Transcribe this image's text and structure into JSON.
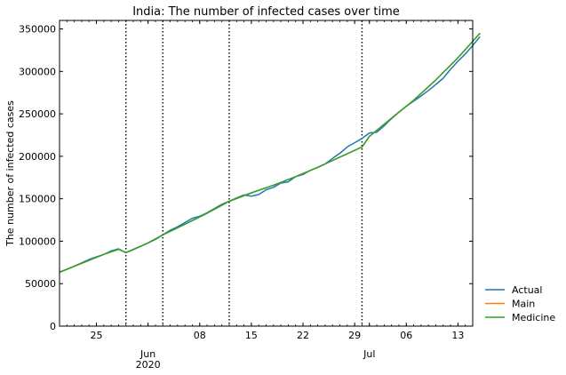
{
  "chart_data": {
    "type": "line",
    "title": "India: The number of infected cases over time",
    "xlabel": "",
    "ylabel": "The number of infected cases",
    "x_axis": {
      "type": "date",
      "range": [
        "2020-05-20",
        "2020-07-15"
      ],
      "major_ticks": [
        {
          "date": "2020-05-25",
          "label": "25",
          "group": ""
        },
        {
          "date": "2020-06-01",
          "label": "Jun",
          "group": "2020"
        },
        {
          "date": "2020-06-08",
          "label": "08",
          "group": ""
        },
        {
          "date": "2020-06-15",
          "label": "15",
          "group": ""
        },
        {
          "date": "2020-06-22",
          "label": "22",
          "group": ""
        },
        {
          "date": "2020-06-29",
          "label": "29",
          "group": ""
        },
        {
          "date": "2020-07-01",
          "label": "Jul",
          "group": ""
        },
        {
          "date": "2020-07-06",
          "label": "06",
          "group": ""
        },
        {
          "date": "2020-07-13",
          "label": "13",
          "group": ""
        }
      ]
    },
    "ylim": [
      0,
      360000
    ],
    "y_ticks": [
      {
        "value": 0,
        "label": "0"
      },
      {
        "value": 50000,
        "label": "50000"
      },
      {
        "value": 100000,
        "label": "100000"
      },
      {
        "value": 150000,
        "label": "150000"
      },
      {
        "value": 200000,
        "label": "200000"
      },
      {
        "value": 250000,
        "label": "250000"
      },
      {
        "value": 300000,
        "label": "300000"
      },
      {
        "value": 350000,
        "label": "350000"
      }
    ],
    "vertical_lines": [
      "2020-05-29",
      "2020-06-03",
      "2020-06-12",
      "2020-06-30"
    ],
    "legend_position": "lower right, outside plot",
    "grid": false,
    "series": [
      {
        "name": "Actual",
        "color": "#1f77b4",
        "points": [
          [
            "2020-05-20",
            63500
          ],
          [
            "2020-05-21",
            67000
          ],
          [
            "2020-05-22",
            70500
          ],
          [
            "2020-05-23",
            74500
          ],
          [
            "2020-05-24",
            78500
          ],
          [
            "2020-05-25",
            81500
          ],
          [
            "2020-05-26",
            84500
          ],
          [
            "2020-05-27",
            88500
          ],
          [
            "2020-05-28",
            91000
          ],
          [
            "2020-05-29",
            86500
          ],
          [
            "2020-05-30",
            90000
          ],
          [
            "2020-05-31",
            94000
          ],
          [
            "2020-06-01",
            98000
          ],
          [
            "2020-06-02",
            102000
          ],
          [
            "2020-06-03",
            107500
          ],
          [
            "2020-06-04",
            113000
          ],
          [
            "2020-06-05",
            117000
          ],
          [
            "2020-06-06",
            122000
          ],
          [
            "2020-06-07",
            127000
          ],
          [
            "2020-06-08",
            129500
          ],
          [
            "2020-06-09",
            133500
          ],
          [
            "2020-06-10",
            138500
          ],
          [
            "2020-06-11",
            143500
          ],
          [
            "2020-06-12",
            147000
          ],
          [
            "2020-06-13",
            151000
          ],
          [
            "2020-06-14",
            154500
          ],
          [
            "2020-06-15",
            153000
          ],
          [
            "2020-06-16",
            155000
          ],
          [
            "2020-06-17",
            160500
          ],
          [
            "2020-06-18",
            163500
          ],
          [
            "2020-06-19",
            168500
          ],
          [
            "2020-06-20",
            170000
          ],
          [
            "2020-06-21",
            176000
          ],
          [
            "2020-06-22",
            178500
          ],
          [
            "2020-06-23",
            183500
          ],
          [
            "2020-06-24",
            187000
          ],
          [
            "2020-06-25",
            191000
          ],
          [
            "2020-06-26",
            197500
          ],
          [
            "2020-06-27",
            203500
          ],
          [
            "2020-06-28",
            211000
          ],
          [
            "2020-06-29",
            216000
          ],
          [
            "2020-06-30",
            221000
          ],
          [
            "2020-07-01",
            227500
          ],
          [
            "2020-07-02",
            228500
          ],
          [
            "2020-07-03",
            236000
          ],
          [
            "2020-07-04",
            244500
          ],
          [
            "2020-07-05",
            252000
          ],
          [
            "2020-07-06",
            259000
          ],
          [
            "2020-07-07",
            265000
          ],
          [
            "2020-07-08",
            271000
          ],
          [
            "2020-07-09",
            277500
          ],
          [
            "2020-07-10",
            284500
          ],
          [
            "2020-07-11",
            292000
          ],
          [
            "2020-07-12",
            302500
          ],
          [
            "2020-07-13",
            312000
          ],
          [
            "2020-07-14",
            320500
          ],
          [
            "2020-07-15",
            330500
          ],
          [
            "2020-07-16",
            341000
          ]
        ]
      },
      {
        "name": "Main",
        "color": "#ff7f0e",
        "points": [
          [
            "2020-05-20",
            63500
          ],
          [
            "2020-05-23",
            74000
          ],
          [
            "2020-05-26",
            84500
          ],
          [
            "2020-05-28",
            90500
          ],
          [
            "2020-05-29",
            86500
          ],
          [
            "2020-06-01",
            98000
          ],
          [
            "2020-06-03",
            107500
          ],
          [
            "2020-06-06",
            120000
          ],
          [
            "2020-06-09",
            133000
          ],
          [
            "2020-06-12",
            147000
          ],
          [
            "2020-06-15",
            157000
          ],
          [
            "2020-06-18",
            166000
          ],
          [
            "2020-06-21",
            176000
          ],
          [
            "2020-06-24",
            187000
          ],
          [
            "2020-06-27",
            199000
          ],
          [
            "2020-06-30",
            211000
          ],
          [
            "2020-07-01",
            223500
          ],
          [
            "2020-07-04",
            245000
          ],
          [
            "2020-07-07",
            266000
          ],
          [
            "2020-07-10",
            290000
          ],
          [
            "2020-07-13",
            316000
          ],
          [
            "2020-07-16",
            345000
          ]
        ]
      },
      {
        "name": "Medicine",
        "color": "#2ca02c",
        "points": [
          [
            "2020-05-20",
            63500
          ],
          [
            "2020-05-23",
            74000
          ],
          [
            "2020-05-26",
            84500
          ],
          [
            "2020-05-28",
            90500
          ],
          [
            "2020-05-29",
            86500
          ],
          [
            "2020-06-01",
            98000
          ],
          [
            "2020-06-03",
            107500
          ],
          [
            "2020-06-06",
            120000
          ],
          [
            "2020-06-09",
            133000
          ],
          [
            "2020-06-12",
            147000
          ],
          [
            "2020-06-15",
            157000
          ],
          [
            "2020-06-18",
            166000
          ],
          [
            "2020-06-21",
            176000
          ],
          [
            "2020-06-24",
            187000
          ],
          [
            "2020-06-27",
            199000
          ],
          [
            "2020-06-30",
            211000
          ],
          [
            "2020-07-01",
            223500
          ],
          [
            "2020-07-04",
            245000
          ],
          [
            "2020-07-07",
            266000
          ],
          [
            "2020-07-10",
            290000
          ],
          [
            "2020-07-13",
            316000
          ],
          [
            "2020-07-16",
            345000
          ]
        ]
      }
    ]
  }
}
